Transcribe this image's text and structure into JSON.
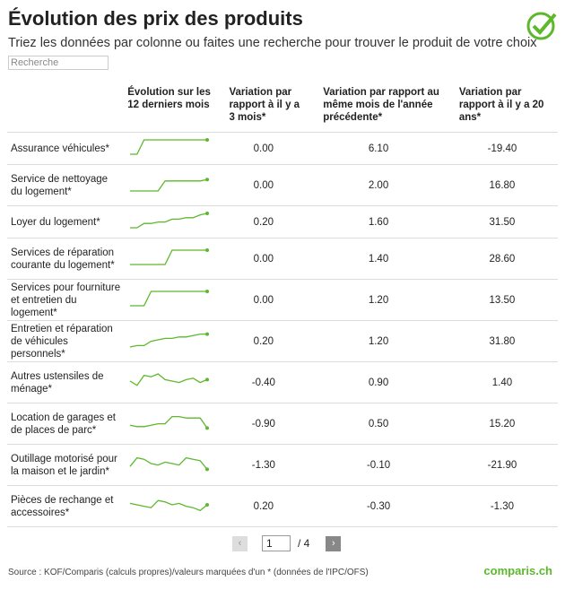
{
  "header": {
    "title": "Évolution des prix des produits",
    "subtitle": "Triez les données par colonne ou faites une recherche pour trouver le produit de votre choix",
    "search_placeholder": "Recherche"
  },
  "table": {
    "columns": [
      "",
      "Évolution sur les 12 derniers mois",
      "Variation par rapport à il y a 3 mois*",
      "Variation par rapport au même mois de l'année précédente*",
      "Variation par rapport à il y a 20 ans*"
    ],
    "rows": [
      [
        "Assurance véhicules*",
        [
          0,
          0,
          10,
          10,
          10,
          10,
          10,
          10,
          10,
          10,
          10,
          10
        ],
        "0.00",
        "6.10",
        "-19.40"
      ],
      [
        "Service de nettoyage du logement*",
        [
          0,
          0,
          0,
          0,
          0,
          7,
          7,
          7,
          7,
          7,
          7,
          8
        ],
        "0.00",
        "2.00",
        "16.80"
      ],
      [
        "Loyer du logement*",
        [
          0,
          0,
          3,
          3,
          4,
          4,
          6,
          6,
          7,
          7,
          9,
          10
        ],
        "0.20",
        "1.60",
        "31.50"
      ],
      [
        "Services de réparation courante du logement*",
        [
          0,
          0,
          0,
          0,
          0,
          0,
          10,
          10,
          10,
          10,
          10,
          10
        ],
        "0.00",
        "1.40",
        "28.60"
      ],
      [
        "Services pour fourniture et entretien du logement*",
        [
          0,
          0,
          0,
          10,
          10,
          10,
          10,
          10,
          10,
          10,
          10,
          10
        ],
        "0.00",
        "1.20",
        "13.50"
      ],
      [
        "Entretien et réparation de véhicules personnels*",
        [
          0,
          1,
          1,
          4,
          5,
          6,
          6,
          7,
          7,
          8,
          9,
          9
        ],
        "0.20",
        "1.20",
        "31.80"
      ],
      [
        "Autres ustensiles de ménage*",
        [
          5,
          2,
          9,
          8,
          10,
          6,
          5,
          4,
          6,
          7,
          4,
          6
        ],
        "-0.40",
        "0.90",
        "1.40"
      ],
      [
        "Location de garages et de places de parc*",
        [
          3,
          2,
          2,
          3,
          4,
          4,
          9,
          9,
          8,
          8,
          8,
          1
        ],
        "-0.90",
        "0.50",
        "15.20"
      ],
      [
        "Outillage motorisé pour la maison et le jardin*",
        [
          3,
          9,
          8,
          5,
          4,
          6,
          5,
          4,
          9,
          8,
          7,
          1
        ],
        "-1.30",
        "-0.10",
        "-21.90"
      ],
      [
        "Pièces de rechange et accessoires*",
        [
          6,
          5,
          4,
          3,
          8,
          7,
          5,
          6,
          4,
          3,
          1,
          5
        ],
        "0.20",
        "-0.30",
        "-1.30"
      ]
    ]
  },
  "pagination": {
    "prev": "‹",
    "page": "1",
    "total": "/ 4",
    "next": "›"
  },
  "footer": {
    "source": "Source : KOF/Comparis (calculs propres)/valeurs marquées d'un * (données de l'IPC/OFS)",
    "logo": "comparis.ch"
  }
}
